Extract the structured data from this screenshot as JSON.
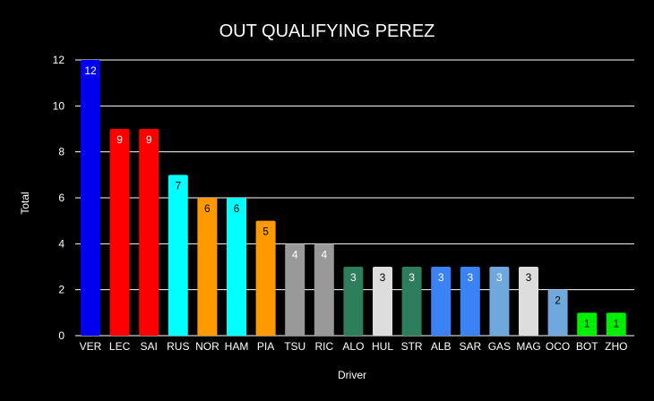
{
  "chart_data": {
    "type": "bar",
    "title": "OUT QUALIFYING PEREZ",
    "xlabel": "Driver",
    "ylabel": "Total",
    "ylim": [
      0,
      12
    ],
    "yticks": [
      "0",
      "2",
      "4",
      "6",
      "8",
      "10",
      "12"
    ],
    "grid": "horizontal",
    "categories": [
      "VER",
      "LEC",
      "SAI",
      "RUS",
      "NOR",
      "HAM",
      "PIA",
      "TSU",
      "RIC",
      "ALO",
      "HUL",
      "STR",
      "ALB",
      "SAR",
      "GAS",
      "MAG",
      "OCO",
      "BOT",
      "ZHO"
    ],
    "values": [
      12,
      9,
      9,
      7,
      6,
      6,
      5,
      4,
      4,
      3,
      3,
      3,
      3,
      3,
      3,
      3,
      2,
      1,
      1
    ],
    "colors": [
      "#0000ee",
      "#ff0000",
      "#ff0000",
      "#00ffff",
      "#ff9900",
      "#00ffff",
      "#ff9900",
      "#999999",
      "#999999",
      "#2e7d5b",
      "#dddddd",
      "#2e7d5b",
      "#3b82f6",
      "#3b82f6",
      "#6fa8dc",
      "#dddddd",
      "#6fa8dc",
      "#00ee00",
      "#00ee00"
    ],
    "label_colors": [
      "#ffffff",
      "#ffffff",
      "#ffffff",
      "#000000",
      "#000000",
      "#000000",
      "#000000",
      "#ffffff",
      "#ffffff",
      "#ffffff",
      "#000000",
      "#ffffff",
      "#ffffff",
      "#ffffff",
      "#ffffff",
      "#000000",
      "#000000",
      "#000000",
      "#000000"
    ]
  }
}
